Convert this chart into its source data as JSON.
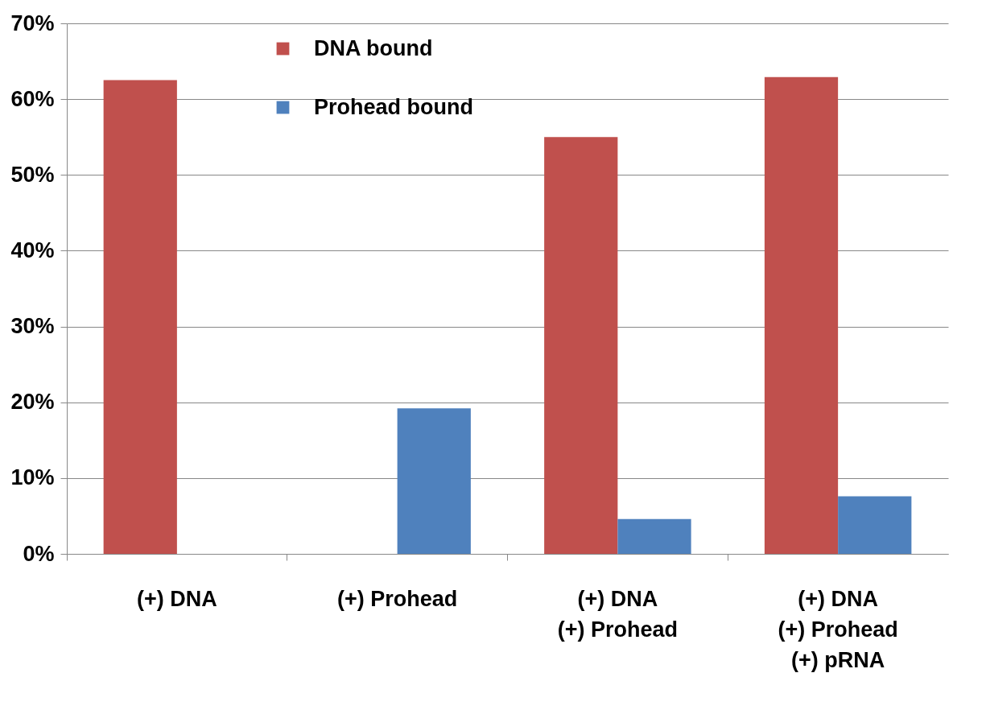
{
  "chart_data": {
    "type": "bar",
    "categories": [
      "(+) DNA",
      "(+) Prohead",
      "(+) DNA\n(+) Prohead",
      "(+) DNA\n(+) Prohead\n(+) pRNA"
    ],
    "series": [
      {
        "name": "DNA bound",
        "color": "#c0504d",
        "values": [
          62.5,
          null,
          55,
          62.9
        ]
      },
      {
        "name": "Prohead bound",
        "color": "#4f81bd",
        "values": [
          null,
          19.2,
          4.6,
          7.6
        ]
      }
    ],
    "ylim": [
      0,
      70
    ],
    "yticks": [
      {
        "value": 0,
        "label": "0%"
      },
      {
        "value": 10,
        "label": "10%"
      },
      {
        "value": 20,
        "label": "20%"
      },
      {
        "value": 30,
        "label": "30%"
      },
      {
        "value": 40,
        "label": "40%"
      },
      {
        "value": 50,
        "label": "50%"
      },
      {
        "value": 60,
        "label": "60%"
      },
      {
        "value": 70,
        "label": "70%"
      }
    ],
    "grid": "y",
    "legend": "top"
  }
}
